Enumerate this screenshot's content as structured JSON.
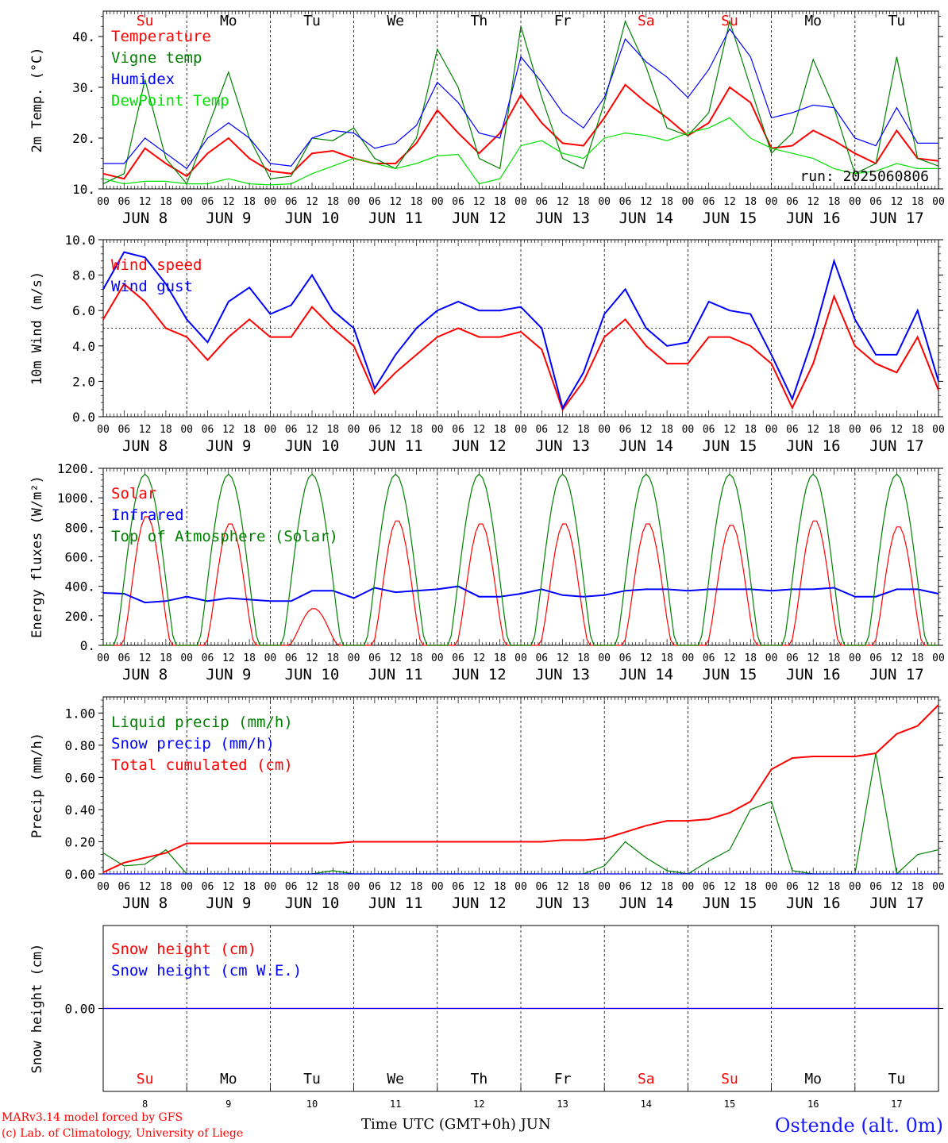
{
  "meta": {
    "model_line": "MARv3.14 model forced by GFS",
    "lab_line": "(c) Lab. of Climatology, University of Liege",
    "time_axis_label": "Time UTC (GMT+0h) JUN",
    "station": "Ostende (alt. 0m)",
    "run_label": "run: 2025060806"
  },
  "days": {
    "weekday_labels": [
      "Su",
      "Mo",
      "Tu",
      "We",
      "Th",
      "Fr",
      "Sa",
      "Su",
      "Mo",
      "Tu"
    ],
    "weekday_colors": [
      "#ff0000",
      "#000000",
      "#000000",
      "#000000",
      "#000000",
      "#000000",
      "#ff0000",
      "#ff0000",
      "#000000",
      "#000000"
    ],
    "date_labels": [
      "JUN 8",
      "JUN 9",
      "JUN 10",
      "JUN 11",
      "JUN 12",
      "JUN 13",
      "JUN 14",
      "JUN 15",
      "JUN 16",
      "JUN 17"
    ],
    "day_numbers": [
      "8",
      "9",
      "10",
      "11",
      "12",
      "13",
      "14",
      "15",
      "16",
      "17"
    ],
    "hour_labels": [
      "00",
      "06",
      "12",
      "18"
    ],
    "final_hour_label": "00"
  },
  "chart_data": [
    {
      "type": "line",
      "ylabel": "2m Temp. (°C)",
      "ylim": [
        10,
        45
      ],
      "yticks": [
        10,
        20,
        30,
        40
      ],
      "ytick_labels": [
        "10.",
        "20.",
        "30.",
        "40."
      ],
      "x_unit": "hours since JUN 8 00 UTC",
      "series": [
        {
          "name": "Temperature",
          "color": "#ff0000",
          "x": [
            0,
            6,
            12,
            18,
            24,
            30,
            36,
            42,
            48,
            54,
            60,
            66,
            72,
            78,
            84,
            90,
            96,
            102,
            108,
            114,
            120,
            126,
            132,
            138,
            144,
            150,
            156,
            162,
            168,
            174,
            180,
            186,
            192,
            198,
            204,
            210,
            216,
            222,
            228,
            234,
            240
          ],
          "y": [
            13,
            12,
            18,
            15,
            12.5,
            17,
            20,
            16,
            13.5,
            13,
            17,
            17.5,
            16,
            15,
            15,
            19,
            25.5,
            21,
            17,
            21,
            28.5,
            23,
            19,
            18.5,
            24,
            30.5,
            27,
            24,
            20.5,
            23,
            30,
            27,
            18,
            18.5,
            21.5,
            19.5,
            17,
            15,
            21.5,
            16,
            15.5
          ]
        },
        {
          "name": "Vigne temp",
          "color": "#008000",
          "x": [
            0,
            6,
            12,
            18,
            24,
            30,
            36,
            42,
            48,
            54,
            60,
            66,
            72,
            78,
            84,
            90,
            96,
            102,
            108,
            114,
            120,
            126,
            132,
            138,
            144,
            150,
            156,
            162,
            168,
            174,
            180,
            186,
            192,
            198,
            204,
            210,
            216,
            222,
            228,
            234,
            240
          ],
          "y": [
            11,
            13,
            31.5,
            16,
            11,
            22,
            33,
            20,
            12,
            12.5,
            20,
            19.5,
            22,
            16,
            14,
            20,
            37.5,
            30,
            16,
            14,
            42,
            28,
            16,
            14,
            27,
            43,
            34,
            22,
            20.5,
            25,
            43,
            30,
            17,
            21,
            35.5,
            26,
            13,
            15,
            36,
            16,
            14.5
          ]
        },
        {
          "name": "Humidex",
          "color": "#0000ff",
          "x": [
            0,
            6,
            12,
            18,
            24,
            30,
            36,
            42,
            48,
            54,
            60,
            66,
            72,
            78,
            84,
            90,
            96,
            102,
            108,
            114,
            120,
            126,
            132,
            138,
            144,
            150,
            156,
            162,
            168,
            174,
            180,
            186,
            192,
            198,
            204,
            210,
            216,
            222,
            228,
            234,
            240
          ],
          "y": [
            15,
            15,
            20,
            17,
            14,
            20,
            23,
            20,
            15,
            14.5,
            20,
            21.5,
            21,
            18,
            19,
            22.5,
            31,
            27,
            21,
            20,
            36,
            31,
            25,
            22,
            28,
            39.5,
            35,
            32,
            28,
            33.5,
            41.5,
            36,
            24,
            25,
            26.5,
            26,
            20,
            18.5,
            26,
            19,
            19
          ]
        },
        {
          "name": "DewPoint Temp",
          "color": "#00e000",
          "x": [
            0,
            6,
            12,
            18,
            24,
            30,
            36,
            42,
            48,
            54,
            60,
            66,
            72,
            78,
            84,
            90,
            96,
            102,
            108,
            114,
            120,
            126,
            132,
            138,
            144,
            150,
            156,
            162,
            168,
            174,
            180,
            186,
            192,
            198,
            204,
            210,
            216,
            222,
            228,
            234,
            240
          ],
          "y": [
            12,
            11,
            11.5,
            11.5,
            11,
            11,
            12,
            11,
            10.8,
            11,
            13,
            14.5,
            16,
            15,
            14,
            15,
            16.5,
            16.8,
            11,
            12,
            18.5,
            19.5,
            17,
            16,
            20,
            21,
            20.5,
            19.5,
            21,
            22,
            24,
            20,
            18,
            17,
            16,
            14,
            13,
            13.5,
            15,
            14,
            14
          ]
        }
      ]
    },
    {
      "type": "line",
      "ylabel": "10m Wind (m/s)",
      "ylim": [
        0,
        10
      ],
      "yticks": [
        0,
        2,
        4,
        6,
        8,
        10
      ],
      "ytick_labels": [
        "0.0",
        "2.0",
        "4.0",
        "6.0",
        "8.0",
        "10.0"
      ],
      "reference_line": 5,
      "x_unit": "hours since JUN 8 00 UTC",
      "series": [
        {
          "name": "Wind speed",
          "color": "#ff0000",
          "x": [
            0,
            6,
            12,
            18,
            24,
            30,
            36,
            42,
            48,
            54,
            60,
            66,
            72,
            78,
            84,
            90,
            96,
            102,
            108,
            114,
            120,
            126,
            132,
            138,
            144,
            150,
            156,
            162,
            168,
            174,
            180,
            186,
            192,
            198,
            204,
            210,
            216,
            222,
            228,
            234,
            240
          ],
          "y": [
            5.5,
            7.5,
            6.5,
            5,
            4.5,
            3.2,
            4.5,
            5.5,
            4.5,
            4.5,
            6.2,
            5,
            4,
            1.3,
            2.5,
            3.5,
            4.5,
            5,
            4.5,
            4.5,
            4.8,
            3.8,
            0.4,
            2,
            4.5,
            5.5,
            4,
            3,
            3,
            4.5,
            4.5,
            4,
            3,
            0.5,
            3,
            6.8,
            4,
            3,
            2.5,
            4.5,
            1.5
          ]
        },
        {
          "name": "Wind gust",
          "color": "#0000ff",
          "x": [
            0,
            6,
            12,
            18,
            24,
            30,
            36,
            42,
            48,
            54,
            60,
            66,
            72,
            78,
            84,
            90,
            96,
            102,
            108,
            114,
            120,
            126,
            132,
            138,
            144,
            150,
            156,
            162,
            168,
            174,
            180,
            186,
            192,
            198,
            204,
            210,
            216,
            222,
            228,
            234,
            240
          ],
          "y": [
            7.2,
            9.3,
            9,
            7.5,
            5.5,
            4.2,
            6.5,
            7.3,
            5.8,
            6.3,
            8,
            6,
            5,
            1.6,
            3.5,
            5,
            6,
            6.5,
            6,
            6,
            6.2,
            5,
            0.5,
            2.5,
            5.8,
            7.2,
            5,
            4,
            4.2,
            6.5,
            6,
            5.8,
            3.5,
            1,
            4.5,
            8.8,
            5.5,
            3.5,
            3.5,
            6,
            2
          ]
        }
      ]
    },
    {
      "type": "line",
      "ylabel": "Energy fluxes (W/m²)",
      "ylim": [
        0,
        1200
      ],
      "yticks": [
        0,
        200,
        400,
        600,
        800,
        1000,
        1200
      ],
      "ytick_labels": [
        "0.",
        "200.",
        "400.",
        "600.",
        "800.",
        "1000.",
        "1200."
      ],
      "x_unit": "hours since JUN 8 00 UTC",
      "series": [
        {
          "name": "Solar",
          "color": "#ff0000",
          "peaks": [
            880,
            830,
            250,
            850,
            830,
            830,
            830,
            820,
            850,
            810
          ],
          "x": [],
          "y": []
        },
        {
          "name": "Infrared",
          "color": "#0000ff",
          "x": [
            0,
            6,
            12,
            18,
            24,
            30,
            36,
            42,
            48,
            54,
            60,
            66,
            72,
            78,
            84,
            90,
            96,
            102,
            108,
            114,
            120,
            126,
            132,
            138,
            144,
            150,
            156,
            162,
            168,
            174,
            180,
            186,
            192,
            198,
            204,
            210,
            216,
            222,
            228,
            234,
            240
          ],
          "y": [
            355,
            350,
            290,
            300,
            330,
            300,
            320,
            310,
            300,
            300,
            370,
            370,
            320,
            390,
            360,
            370,
            380,
            400,
            330,
            330,
            350,
            380,
            340,
            330,
            340,
            370,
            380,
            380,
            370,
            380,
            380,
            380,
            370,
            380,
            380,
            390,
            330,
            330,
            380,
            380,
            350
          ]
        },
        {
          "name": "Top of Atmosphere (Solar)",
          "color": "#008000",
          "peak": 1160,
          "x": [],
          "y": []
        }
      ]
    },
    {
      "type": "line",
      "ylabel": "Precip (mm/h)",
      "ylim": [
        0,
        1.1
      ],
      "yticks": [
        0,
        0.2,
        0.4,
        0.6,
        0.8,
        1.0
      ],
      "ytick_labels": [
        "0.00",
        "0.20",
        "0.40",
        "0.60",
        "0.80",
        "1.00"
      ],
      "x_unit": "hours since JUN 8 00 UTC",
      "series": [
        {
          "name": "Liquid precip (mm/h)",
          "color": "#008000",
          "x": [
            0,
            6,
            12,
            18,
            24,
            30,
            36,
            42,
            48,
            54,
            60,
            66,
            72,
            78,
            84,
            90,
            96,
            102,
            108,
            114,
            120,
            126,
            132,
            138,
            144,
            150,
            156,
            162,
            168,
            174,
            180,
            186,
            192,
            198,
            204,
            210,
            216,
            222,
            228,
            234,
            240
          ],
          "y": [
            0.13,
            0.05,
            0.06,
            0.15,
            0,
            0,
            0,
            0,
            0,
            0,
            0,
            0.02,
            0,
            0,
            0,
            0,
            0,
            0,
            0,
            0,
            0,
            0,
            0,
            0,
            0.05,
            0.2,
            0.1,
            0.02,
            0,
            0.08,
            0.15,
            0.4,
            0.45,
            0.02,
            0,
            0,
            0,
            0.75,
            0,
            0.12,
            0.15
          ]
        },
        {
          "name": "Snow precip (mm/h)",
          "color": "#0000ff",
          "x": [
            0,
            240
          ],
          "y": [
            0,
            0
          ]
        },
        {
          "name": "Total cumulated (cm)",
          "color": "#ff0000",
          "x": [
            0,
            6,
            12,
            18,
            24,
            30,
            36,
            42,
            48,
            54,
            60,
            66,
            72,
            78,
            84,
            90,
            96,
            102,
            108,
            114,
            120,
            126,
            132,
            138,
            144,
            150,
            156,
            162,
            168,
            174,
            180,
            186,
            192,
            198,
            204,
            210,
            216,
            222,
            228,
            234,
            240
          ],
          "y": [
            0.01,
            0.07,
            0.1,
            0.13,
            0.19,
            0.19,
            0.19,
            0.19,
            0.19,
            0.19,
            0.19,
            0.19,
            0.2,
            0.2,
            0.2,
            0.2,
            0.2,
            0.2,
            0.2,
            0.2,
            0.2,
            0.2,
            0.21,
            0.21,
            0.22,
            0.26,
            0.3,
            0.33,
            0.33,
            0.34,
            0.38,
            0.45,
            0.65,
            0.72,
            0.73,
            0.73,
            0.73,
            0.75,
            0.87,
            0.92,
            1.05
          ]
        }
      ]
    },
    {
      "type": "line",
      "ylabel": "Snow height (cm)",
      "ylim": [
        -1,
        1
      ],
      "yticks": [
        0
      ],
      "ytick_labels": [
        "0.00"
      ],
      "x_unit": "hours since JUN 8 00 UTC",
      "series": [
        {
          "name": "Snow height (cm)",
          "color": "#ff0000",
          "x": [
            0,
            240
          ],
          "y": [
            0,
            0
          ]
        },
        {
          "name": "Snow height (cm W.E.)",
          "color": "#0000ff",
          "x": [
            0,
            240
          ],
          "y": [
            0,
            0
          ]
        }
      ]
    }
  ]
}
